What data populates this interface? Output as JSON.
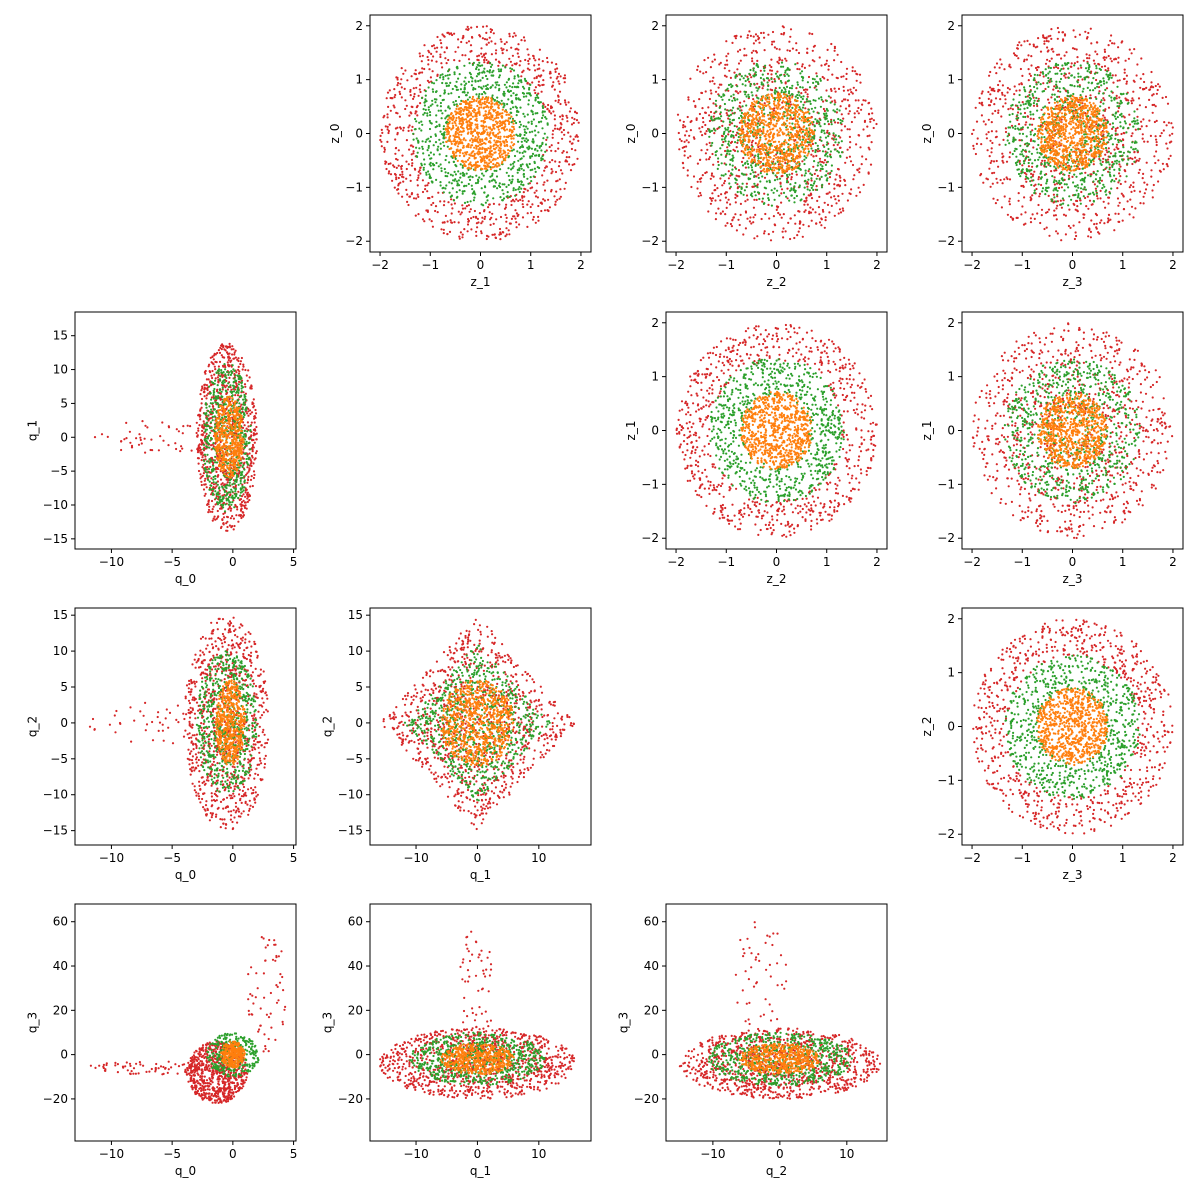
{
  "colors": {
    "series_1": "#ff7f0e",
    "series_2": "#2ca02c",
    "series_3": "#d62728"
  },
  "chart_data": [
    {
      "type": "scatter",
      "cell": "row1-col2",
      "xlabel": "z_1",
      "ylabel": "z_0",
      "xlim": [
        -2.2,
        2.2
      ],
      "ylim": [
        -2.2,
        2.2
      ],
      "xticks": [
        -2,
        -1,
        0,
        1,
        2
      ],
      "yticks": [
        -2,
        -1,
        0,
        1,
        2
      ],
      "series": [
        {
          "color": "#d62728",
          "shape": "ring",
          "r_min": 1.3,
          "r_max": 2.0,
          "center": [
            0,
            0
          ],
          "count": 750
        },
        {
          "color": "#2ca02c",
          "shape": "ring",
          "r_min": 0.65,
          "r_max": 1.35,
          "center": [
            0,
            0
          ],
          "count": 750
        },
        {
          "color": "#ff7f0e",
          "shape": "disk",
          "r_min": 0,
          "r_max": 0.7,
          "center": [
            0,
            0
          ],
          "count": 750
        }
      ]
    },
    {
      "type": "scatter",
      "cell": "row1-col3",
      "xlabel": "z_2",
      "ylabel": "z_0",
      "xlim": [
        -2.2,
        2.2
      ],
      "ylim": [
        -2.2,
        2.2
      ],
      "xticks": [
        -2,
        -1,
        0,
        1,
        2
      ],
      "yticks": [
        -2,
        -1,
        0,
        1,
        2
      ],
      "series": [
        {
          "color": "#d62728",
          "shape": "ring",
          "r_min": 0.3,
          "r_max": 2.0,
          "center": [
            0,
            0
          ],
          "count": 900
        },
        {
          "color": "#2ca02c",
          "shape": "ring",
          "r_min": 0.2,
          "r_max": 1.35,
          "center": [
            0,
            0
          ],
          "count": 750
        },
        {
          "color": "#ff7f0e",
          "shape": "disk",
          "r_min": 0,
          "r_max": 0.75,
          "center": [
            0,
            0
          ],
          "count": 750
        }
      ]
    },
    {
      "type": "scatter",
      "cell": "row1-col4",
      "xlabel": "z_3",
      "ylabel": "z_0",
      "xlim": [
        -2.2,
        2.2
      ],
      "ylim": [
        -2.2,
        2.2
      ],
      "xticks": [
        -2,
        -1,
        0,
        1,
        2
      ],
      "yticks": [
        -2,
        -1,
        0,
        1,
        2
      ],
      "series": [
        {
          "color": "#d62728",
          "shape": "ring",
          "r_min": 0.3,
          "r_max": 2.0,
          "center": [
            0,
            0
          ],
          "count": 900
        },
        {
          "color": "#2ca02c",
          "shape": "ring",
          "r_min": 0.2,
          "r_max": 1.35,
          "center": [
            0,
            0
          ],
          "count": 750
        },
        {
          "color": "#ff7f0e",
          "shape": "disk",
          "r_min": 0,
          "r_max": 0.7,
          "center": [
            0,
            0
          ],
          "count": 750
        }
      ]
    },
    {
      "type": "scatter",
      "cell": "row2-col1",
      "xlabel": "q_0",
      "ylabel": "q_1",
      "xlim": [
        -13,
        5.2
      ],
      "ylim": [
        -16.5,
        18.5
      ],
      "xticks": [
        -10,
        -5,
        0,
        5
      ],
      "yticks": [
        -15,
        -10,
        -5,
        0,
        5,
        10,
        15
      ],
      "series": [
        {
          "color": "#d62728",
          "shape": "ellipse",
          "center": [
            -0.5,
            0
          ],
          "half_width": [
            2.5,
            14
          ],
          "count": 900
        },
        {
          "color": "#d62728",
          "shape": "ellipse",
          "center": [
            -6,
            0
          ],
          "half_width": [
            5.5,
            2.5
          ],
          "count": 60
        },
        {
          "color": "#2ca02c",
          "shape": "ellipse",
          "center": [
            -0.5,
            0
          ],
          "half_width": [
            2.0,
            11
          ],
          "count": 600
        },
        {
          "color": "#ff7f0e",
          "shape": "ellipse",
          "center": [
            -0.3,
            0
          ],
          "half_width": [
            1.2,
            6
          ],
          "count": 500
        }
      ]
    },
    {
      "type": "scatter",
      "cell": "row2-col3",
      "xlabel": "z_2",
      "ylabel": "z_1",
      "xlim": [
        -2.2,
        2.2
      ],
      "ylim": [
        -2.2,
        2.2
      ],
      "xticks": [
        -2,
        -1,
        0,
        1,
        2
      ],
      "yticks": [
        -2,
        -1,
        0,
        1,
        2
      ],
      "series": [
        {
          "color": "#d62728",
          "shape": "ring",
          "r_min": 1.3,
          "r_max": 2.0,
          "center": [
            0,
            0
          ],
          "count": 750
        },
        {
          "color": "#2ca02c",
          "shape": "ring",
          "r_min": 0.65,
          "r_max": 1.35,
          "center": [
            0,
            0
          ],
          "count": 750
        },
        {
          "color": "#ff7f0e",
          "shape": "disk",
          "r_min": 0,
          "r_max": 0.72,
          "center": [
            0,
            0
          ],
          "count": 750
        }
      ]
    },
    {
      "type": "scatter",
      "cell": "row2-col4",
      "xlabel": "z_3",
      "ylabel": "z_1",
      "xlim": [
        -2.2,
        2.2
      ],
      "ylim": [
        -2.2,
        2.2
      ],
      "xticks": [
        -2,
        -1,
        0,
        1,
        2
      ],
      "yticks": [
        -2,
        -1,
        0,
        1,
        2
      ],
      "series": [
        {
          "color": "#d62728",
          "shape": "ring",
          "r_min": 0.3,
          "r_max": 2.0,
          "center": [
            0,
            0
          ],
          "count": 900
        },
        {
          "color": "#2ca02c",
          "shape": "ring",
          "r_min": 0.2,
          "r_max": 1.35,
          "center": [
            0,
            0
          ],
          "count": 750
        },
        {
          "color": "#ff7f0e",
          "shape": "disk",
          "r_min": 0,
          "r_max": 0.7,
          "center": [
            0,
            0
          ],
          "count": 750
        }
      ]
    },
    {
      "type": "scatter",
      "cell": "row3-col1",
      "xlabel": "q_0",
      "ylabel": "q_2",
      "xlim": [
        -13,
        5.2
      ],
      "ylim": [
        -17,
        16
      ],
      "xticks": [
        -10,
        -5,
        0,
        5
      ],
      "yticks": [
        -15,
        -10,
        -5,
        0,
        5,
        10,
        15
      ],
      "series": [
        {
          "color": "#d62728",
          "shape": "ellipse",
          "center": [
            -0.5,
            0
          ],
          "half_width": [
            3.5,
            15
          ],
          "count": 900
        },
        {
          "color": "#d62728",
          "shape": "ellipse",
          "center": [
            -6,
            0
          ],
          "half_width": [
            6,
            3
          ],
          "count": 50
        },
        {
          "color": "#2ca02c",
          "shape": "ellipse",
          "center": [
            -0.5,
            0
          ],
          "half_width": [
            2.5,
            10
          ],
          "count": 600
        },
        {
          "color": "#ff7f0e",
          "shape": "ellipse",
          "center": [
            -0.2,
            0
          ],
          "half_width": [
            1.2,
            6
          ],
          "count": 500
        }
      ]
    },
    {
      "type": "scatter",
      "cell": "row3-col2",
      "xlabel": "q_1",
      "ylabel": "q_2",
      "xlim": [
        -17.5,
        18.5
      ],
      "ylim": [
        -17,
        16
      ],
      "xticks": [
        -10,
        0,
        10
      ],
      "yticks": [
        -15,
        -10,
        -5,
        0,
        5,
        10,
        15
      ],
      "series": [
        {
          "color": "#d62728",
          "shape": "diamond",
          "center": [
            0,
            0
          ],
          "half_width": [
            16,
            15
          ],
          "count": 1000
        },
        {
          "color": "#2ca02c",
          "shape": "diamond",
          "center": [
            0,
            0
          ],
          "half_width": [
            12,
            11
          ],
          "count": 750
        },
        {
          "color": "#ff7f0e",
          "shape": "disk",
          "r_min": 0,
          "r_max": 6,
          "center": [
            0,
            0
          ],
          "count": 750
        }
      ]
    },
    {
      "type": "scatter",
      "cell": "row3-col4",
      "xlabel": "z_3",
      "ylabel": "z_2",
      "xlim": [
        -2.2,
        2.2
      ],
      "ylim": [
        -2.2,
        2.2
      ],
      "xticks": [
        -2,
        -1,
        0,
        1,
        2
      ],
      "yticks": [
        -2,
        -1,
        0,
        1,
        2
      ],
      "series": [
        {
          "color": "#d62728",
          "shape": "ring",
          "r_min": 1.3,
          "r_max": 2.0,
          "center": [
            0,
            0
          ],
          "count": 750
        },
        {
          "color": "#2ca02c",
          "shape": "ring",
          "r_min": 0.65,
          "r_max": 1.35,
          "center": [
            0,
            0
          ],
          "count": 750
        },
        {
          "color": "#ff7f0e",
          "shape": "disk",
          "r_min": 0,
          "r_max": 0.72,
          "center": [
            0,
            0
          ],
          "count": 750
        }
      ]
    },
    {
      "type": "scatter",
      "cell": "row4-col1",
      "xlabel": "q_0",
      "ylabel": "q_3",
      "xlim": [
        -13,
        5.2
      ],
      "ylim": [
        -39,
        68
      ],
      "xticks": [
        -10,
        -5,
        0,
        5
      ],
      "yticks": [
        -20,
        0,
        20,
        40,
        60
      ],
      "series": [
        {
          "color": "#d62728",
          "shape": "ellipse",
          "center": [
            -1.3,
            -8
          ],
          "half_width": [
            2.5,
            14
          ],
          "count": 700
        },
        {
          "color": "#d62728",
          "shape": "ellipse",
          "center": [
            -6.5,
            -6
          ],
          "half_width": [
            5.5,
            3
          ],
          "count": 80
        },
        {
          "color": "#d62728",
          "shape": "ellipse",
          "center": [
            2.8,
            30
          ],
          "half_width": [
            1.6,
            30
          ],
          "count": 60
        },
        {
          "color": "#2ca02c",
          "shape": "ellipse",
          "center": [
            0,
            0
          ],
          "half_width": [
            2.2,
            10
          ],
          "count": 300
        },
        {
          "color": "#ff7f0e",
          "shape": "ellipse",
          "center": [
            0,
            0
          ],
          "half_width": [
            1.0,
            6
          ],
          "count": 300
        }
      ]
    },
    {
      "type": "scatter",
      "cell": "row4-col2",
      "xlabel": "q_1",
      "ylabel": "q_3",
      "xlim": [
        -17.5,
        18.5
      ],
      "ylim": [
        -39,
        68
      ],
      "xticks": [
        -10,
        0,
        10
      ],
      "yticks": [
        -20,
        0,
        20,
        40,
        60
      ],
      "series": [
        {
          "color": "#d62728",
          "shape": "ellipse",
          "center": [
            0,
            -4
          ],
          "half_width": [
            16,
            16
          ],
          "count": 1000
        },
        {
          "color": "#d62728",
          "shape": "ellipse",
          "center": [
            0,
            30
          ],
          "half_width": [
            3,
            30
          ],
          "count": 60
        },
        {
          "color": "#2ca02c",
          "shape": "ellipse",
          "center": [
            0,
            -2
          ],
          "half_width": [
            11,
            12
          ],
          "count": 650
        },
        {
          "color": "#ff7f0e",
          "shape": "ellipse",
          "center": [
            0,
            -2
          ],
          "half_width": [
            6,
            7
          ],
          "count": 500
        }
      ]
    },
    {
      "type": "scatter",
      "cell": "row4-col3",
      "xlabel": "q_2",
      "ylabel": "q_3",
      "xlim": [
        -17,
        16
      ],
      "ylim": [
        -39,
        68
      ],
      "xticks": [
        -10,
        0,
        10
      ],
      "yticks": [
        -20,
        0,
        20,
        40,
        60
      ],
      "series": [
        {
          "color": "#d62728",
          "shape": "ellipse",
          "center": [
            0,
            -4
          ],
          "half_width": [
            15,
            16
          ],
          "count": 1000
        },
        {
          "color": "#d62728",
          "shape": "ellipse",
          "center": [
            -3,
            35
          ],
          "half_width": [
            4,
            27
          ],
          "count": 50
        },
        {
          "color": "#2ca02c",
          "shape": "ellipse",
          "center": [
            0,
            -2
          ],
          "half_width": [
            11,
            12
          ],
          "count": 650
        },
        {
          "color": "#ff7f0e",
          "shape": "ellipse",
          "center": [
            0,
            -2
          ],
          "half_width": [
            6,
            7
          ],
          "count": 500
        }
      ]
    }
  ]
}
